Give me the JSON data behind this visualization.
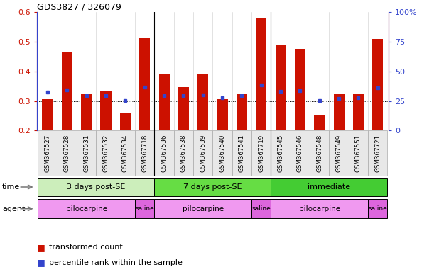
{
  "title": "GDS3827 / 326079",
  "samples": [
    "GSM367527",
    "GSM367528",
    "GSM367531",
    "GSM367532",
    "GSM367534",
    "GSM367718",
    "GSM367536",
    "GSM367538",
    "GSM367539",
    "GSM367540",
    "GSM367541",
    "GSM367719",
    "GSM367545",
    "GSM367546",
    "GSM367548",
    "GSM367549",
    "GSM367551",
    "GSM367721"
  ],
  "red_values": [
    0.305,
    0.465,
    0.325,
    0.333,
    0.26,
    0.515,
    0.39,
    0.348,
    0.392,
    0.305,
    0.322,
    0.58,
    0.49,
    0.477,
    0.252,
    0.323,
    0.322,
    0.51
  ],
  "blue_values": [
    0.33,
    0.337,
    0.318,
    0.318,
    0.302,
    0.348,
    0.318,
    0.318,
    0.32,
    0.31,
    0.318,
    0.355,
    0.333,
    0.334,
    0.302,
    0.308,
    0.312,
    0.345
  ],
  "ymin": 0.2,
  "ymax": 0.6,
  "yticks_left": [
    0.2,
    0.3,
    0.4,
    0.5,
    0.6
  ],
  "yticks_right": [
    0,
    25,
    50,
    75,
    100
  ],
  "time_groups": [
    {
      "label": "3 days post-SE",
      "start": 0,
      "end": 5,
      "color": "#ccf0c0"
    },
    {
      "label": "7 days post-SE",
      "start": 6,
      "end": 11,
      "color": "#66dd55"
    },
    {
      "label": "immediate",
      "start": 12,
      "end": 17,
      "color": "#44cc33"
    }
  ],
  "agent_groups": [
    {
      "label": "pilocarpine",
      "start": 0,
      "end": 4,
      "color": "#f0a0f0"
    },
    {
      "label": "saline",
      "start": 5,
      "end": 5,
      "color": "#dd66dd"
    },
    {
      "label": "pilocarpine",
      "start": 6,
      "end": 10,
      "color": "#f0a0f0"
    },
    {
      "label": "saline",
      "start": 11,
      "end": 11,
      "color": "#dd66dd"
    },
    {
      "label": "pilocarpine",
      "start": 12,
      "end": 16,
      "color": "#f0a0f0"
    },
    {
      "label": "saline",
      "start": 17,
      "end": 17,
      "color": "#dd66dd"
    }
  ],
  "red_color": "#cc1100",
  "blue_color": "#3344cc",
  "bar_width": 0.55,
  "grid_color": "#000000",
  "legend_red": "transformed count",
  "legend_blue": "percentile rank within the sample",
  "time_label": "time",
  "agent_label": "agent",
  "bg_color": "#ffffff"
}
